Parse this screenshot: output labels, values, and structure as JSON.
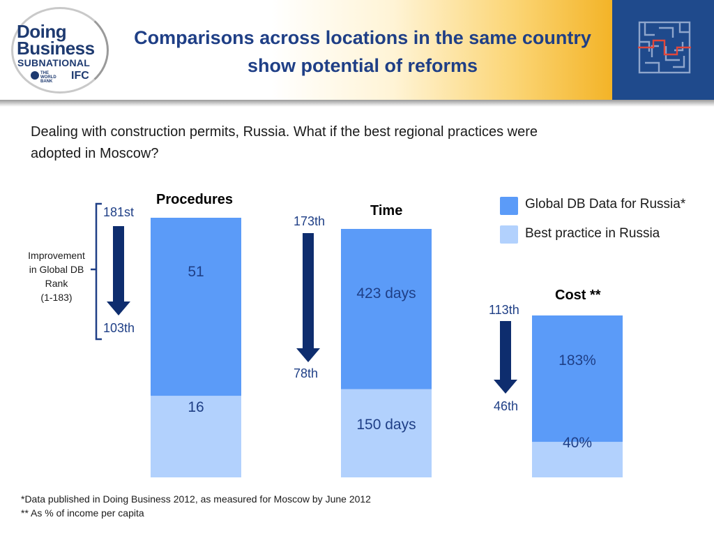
{
  "header": {
    "title_line1": "Comparisons across locations in the same country",
    "title_line2": "show potential of reforms",
    "logo": {
      "line1": "Doing",
      "line2": "Business",
      "line3": "SUBNATIONAL",
      "wb": "THE WORLD BANK",
      "ifc": "IFC"
    }
  },
  "subtitle_line1": "Dealing with construction permits, Russia.  What if the best regional practices were",
  "subtitle_line2": "adopted in Moscow?",
  "rank_note": {
    "line1": "Improvement",
    "line2": "in Global DB",
    "line3": "Rank",
    "line4": "(1-183)"
  },
  "legend": [
    {
      "label": "Global DB Data for Russia*",
      "color": "#5b9bf8"
    },
    {
      "label": "Best practice in Russia",
      "color": "#b2d1fd"
    }
  ],
  "colors": {
    "global": "#5b9bf8",
    "best": "#b2d1fd",
    "arrow": "#0e2d6e",
    "bracket": "#1f3f86"
  },
  "chart_data": [
    {
      "type": "bar",
      "title": "Procedures",
      "categories": [
        "Global DB Data for Russia*",
        "Best practice in Russia"
      ],
      "values": [
        51,
        16
      ],
      "labels": [
        "51",
        "16"
      ],
      "rank_from": "181st",
      "rank_to": "103th"
    },
    {
      "type": "bar",
      "title": "Time",
      "categories": [
        "Global DB Data for Russia*",
        "Best practice in Russia"
      ],
      "values": [
        423,
        150
      ],
      "labels": [
        "423 days",
        "150 days"
      ],
      "rank_from": "173th",
      "rank_to": "78th"
    },
    {
      "type": "bar",
      "title": "Cost **",
      "categories": [
        "Global DB Data for Russia*",
        "Best practice in Russia"
      ],
      "values": [
        183,
        40
      ],
      "labels": [
        "183%",
        "40%"
      ],
      "rank_from": "113th",
      "rank_to": "46th"
    }
  ],
  "footnotes": [
    "*Data published in Doing Business 2012, as measured for Moscow by June 2012",
    "** As % of income per capita"
  ]
}
